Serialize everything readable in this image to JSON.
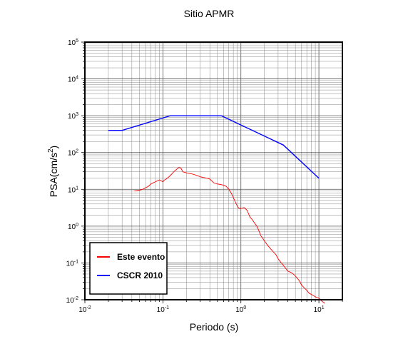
{
  "chart_data": {
    "type": "line",
    "title": "Sitio APMR",
    "xlabel": "Periodo (s)",
    "ylabel": "PSA(cm/s",
    "ylabel_exp": "2",
    "ylabel_close": ")",
    "x_scale": "log",
    "y_scale": "log",
    "xlim": [
      0.01,
      20
    ],
    "ylim": [
      0.01,
      100000
    ],
    "grid": true,
    "legend_position": "bottom-left",
    "x_ticks": [
      {
        "value": 0.01,
        "base": "10",
        "exp": "-2"
      },
      {
        "value": 0.1,
        "base": "10",
        "exp": "-1"
      },
      {
        "value": 1,
        "base": "10",
        "exp": "0"
      },
      {
        "value": 10,
        "base": "10",
        "exp": "1"
      }
    ],
    "y_ticks": [
      {
        "value": 0.01,
        "base": "10",
        "exp": "-2"
      },
      {
        "value": 0.1,
        "base": "10",
        "exp": "-1"
      },
      {
        "value": 1,
        "base": "10",
        "exp": "0"
      },
      {
        "value": 10,
        "base": "10",
        "exp": "1"
      },
      {
        "value": 100,
        "base": "10",
        "exp": "2"
      },
      {
        "value": 1000,
        "base": "10",
        "exp": "3"
      },
      {
        "value": 10000,
        "base": "10",
        "exp": "4"
      },
      {
        "value": 100000,
        "base": "10",
        "exp": "5"
      }
    ],
    "series": [
      {
        "name": "Este evento",
        "color": "#ff0000",
        "x": [
          0.043,
          0.05,
          0.055,
          0.06,
          0.065,
          0.07,
          0.075,
          0.08,
          0.085,
          0.09,
          0.095,
          0.1,
          0.105,
          0.11,
          0.12,
          0.13,
          0.14,
          0.15,
          0.16,
          0.17,
          0.18,
          0.2,
          0.22,
          0.24,
          0.27,
          0.3,
          0.33,
          0.37,
          0.4,
          0.45,
          0.5,
          0.55,
          0.6,
          0.65,
          0.7,
          0.75,
          0.8,
          0.85,
          0.9,
          0.95,
          1.0,
          1.1,
          1.2,
          1.3,
          1.4,
          1.5,
          1.6,
          1.7,
          1.8,
          2.0,
          2.2,
          2.5,
          2.8,
          3.0,
          3.3,
          3.6,
          4.0,
          4.4,
          4.8,
          5.2,
          5.6,
          6.0,
          6.5,
          7.0,
          7.5,
          8.0,
          8.5,
          9.0,
          10.0,
          11.0,
          12.0
        ],
        "y": [
          9,
          9.5,
          10,
          11,
          12,
          14,
          15,
          16,
          17,
          18,
          17,
          16,
          18,
          19,
          22,
          26,
          31,
          35,
          39,
          38,
          30,
          28,
          27,
          26,
          24,
          22,
          21,
          20,
          19,
          15,
          14,
          13.5,
          13,
          12,
          10,
          8,
          6,
          4.5,
          3.5,
          3.0,
          3.0,
          3.2,
          2.7,
          1.8,
          1.5,
          1.2,
          1.0,
          0.75,
          0.55,
          0.4,
          0.3,
          0.22,
          0.17,
          0.13,
          0.1,
          0.08,
          0.06,
          0.055,
          0.048,
          0.04,
          0.033,
          0.025,
          0.021,
          0.018,
          0.015,
          0.014,
          0.013,
          0.012,
          0.011,
          0.009,
          0.008
        ]
      },
      {
        "name": "CSCR 2010",
        "color": "#0000ff",
        "x": [
          0.02,
          0.03,
          0.125,
          0.56,
          3.5,
          10
        ],
        "y": [
          400,
          400,
          1000,
          1000,
          160,
          20
        ]
      }
    ]
  }
}
